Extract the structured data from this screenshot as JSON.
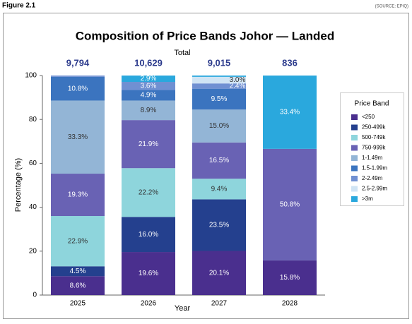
{
  "figure_label": "Figure 2.1",
  "source": "(SOURCE: EPIQ)",
  "chart_data": {
    "type": "stacked_bar",
    "title": "Composition of Price Bands Johor — Landed",
    "x_label": "Year",
    "y_label": "Percentage (%)",
    "categories": [
      "2025",
      "2026",
      "2027",
      "2028"
    ],
    "totals": {
      "label": "Total",
      "values": [
        9794,
        10629,
        9015,
        836
      ],
      "value_labels": [
        "9,794",
        "10,629",
        "9,015",
        "836"
      ]
    },
    "ylim": [
      0,
      100
    ],
    "yticks": [
      0,
      20,
      40,
      60,
      80,
      100
    ],
    "legend": {
      "title": "Price Band",
      "position": "right"
    },
    "series": [
      {
        "name": "<250",
        "color": "#4a2f8e",
        "values": [
          8.6,
          19.6,
          20.1,
          15.8
        ],
        "value_labels": [
          "8.6%",
          "19.6%",
          "20.1%",
          "15.8%"
        ]
      },
      {
        "name": "250-499k",
        "color": "#24408e",
        "values": [
          4.5,
          16.0,
          23.5,
          0
        ],
        "value_labels": [
          "4.5%",
          "16.0%",
          "23.5%",
          null
        ]
      },
      {
        "name": "500-749k",
        "color": "#8ed5dc",
        "values": [
          22.9,
          22.2,
          9.4,
          0
        ],
        "value_labels": [
          "22.9%",
          "22.2%",
          "9.4%",
          null
        ]
      },
      {
        "name": "750-999k",
        "color": "#6962b4",
        "values": [
          19.3,
          21.9,
          16.5,
          50.8
        ],
        "value_labels": [
          "19.3%",
          "21.9%",
          "16.5%",
          "50.8%"
        ]
      },
      {
        "name": "1-1.49m",
        "color": "#93b5d6",
        "values": [
          33.3,
          8.9,
          15.0,
          0
        ],
        "value_labels": [
          "33.3%",
          "8.9%",
          "15.0%",
          null
        ]
      },
      {
        "name": "1.5-1.99m",
        "color": "#3b74bf",
        "values": [
          10.8,
          4.9,
          9.5,
          0
        ],
        "value_labels": [
          "10.8%",
          "4.9%",
          "9.5%",
          null
        ]
      },
      {
        "name": "2-2.49m",
        "color": "#7090d2",
        "values": [
          0.6,
          3.6,
          2.4,
          0
        ],
        "value_labels": [
          null,
          "3.6%",
          "2.4%",
          null
        ]
      },
      {
        "name": "2.5-2.99m",
        "color": "#d0e4f4",
        "values": [
          0,
          0,
          3.0,
          0
        ],
        "value_labels": [
          null,
          null,
          "3.0%",
          null
        ]
      },
      {
        "name": ">3m",
        "color": "#2aa8dd",
        "values": [
          0,
          2.9,
          0.6,
          33.4
        ],
        "value_labels": [
          null,
          "2.9%",
          null,
          "33.4%"
        ]
      }
    ]
  }
}
